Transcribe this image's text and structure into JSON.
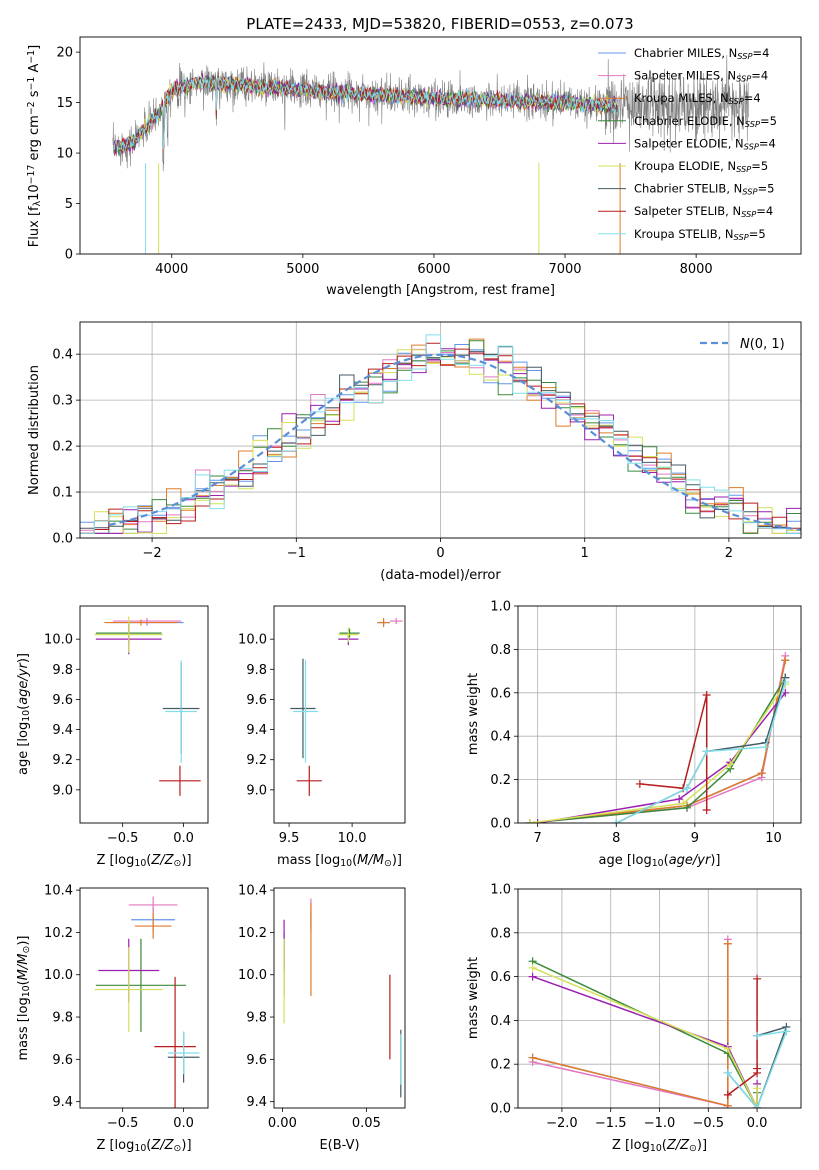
{
  "title": "PLATE=2433, MJD=53820, FIBERID=0553, z=0.073",
  "series": [
    {
      "name": "Chabrier MILES, N_SSP=4",
      "label_main": "Chabrier MILES, N",
      "label_sub": "SSP",
      "label_tail": "=4",
      "color": "#6495ed"
    },
    {
      "name": "Salpeter MILES, N_SSP=4",
      "label_main": "Salpeter MILES, N",
      "label_sub": "SSP",
      "label_tail": "=4",
      "color": "#e377c2"
    },
    {
      "name": "Kroupa MILES, N_SSP=4",
      "label_main": "Kroupa MILES, N",
      "label_sub": "SSP",
      "label_tail": "=4",
      "color": "#e07b28"
    },
    {
      "name": "Chabrier ELODIE, N_SSP=5",
      "label_main": "Chabrier ELODIE, N",
      "label_sub": "SSP",
      "label_tail": "=5",
      "color": "#3a8a3a"
    },
    {
      "name": "Salpeter ELODIE, N_SSP=4",
      "label_main": "Salpeter ELODIE, N",
      "label_sub": "SSP",
      "label_tail": "=4",
      "color": "#9b1fb0"
    },
    {
      "name": "Kroupa ELODIE, N_SSP=5",
      "label_main": "Kroupa ELODIE, N",
      "label_sub": "SSP",
      "label_tail": "=5",
      "color": "#d4e157"
    },
    {
      "name": "Chabrier STELIB, N_SSP=5",
      "label_main": "Chabrier STELIB, N",
      "label_sub": "SSP",
      "label_tail": "=5",
      "color": "#455a64"
    },
    {
      "name": "Salpeter STELIB, N_SSP=4",
      "label_main": "Salpeter STELIB, N",
      "label_sub": "SSP",
      "label_tail": "=4",
      "color": "#b71c1c"
    },
    {
      "name": "Kroupa STELIB, N_SSP=5",
      "label_main": "Kroupa STELIB, N",
      "label_sub": "SSP",
      "label_tail": "=5",
      "color": "#80deea"
    }
  ],
  "chart_data": [
    {
      "id": "spectrum",
      "type": "line",
      "xlabel": "wavelength [Angstrom, rest frame]",
      "ylabel": "Flux [f_λ 10^-17 erg cm^-2 s^-1 A^-1]",
      "xlim": [
        3300,
        8800
      ],
      "ylim": [
        0,
        21.5
      ],
      "xticks": [
        4000,
        5000,
        6000,
        7000,
        8000
      ],
      "yticks": [
        0,
        5,
        10,
        15,
        20
      ],
      "continuum_points": [
        [
          3550,
          10.5
        ],
        [
          3700,
          11
        ],
        [
          3900,
          14
        ],
        [
          4000,
          16.2
        ],
        [
          4200,
          17
        ],
        [
          4500,
          16.8
        ],
        [
          5000,
          16.2
        ],
        [
          5500,
          15.8
        ],
        [
          6000,
          15.4
        ],
        [
          6500,
          15.2
        ],
        [
          7000,
          15
        ],
        [
          7300,
          14.7
        ]
      ],
      "observed_color": "#7f7f7f",
      "grid": false
    },
    {
      "id": "residual_hist",
      "type": "line",
      "xlabel": "(data-model)/error",
      "ylabel": "Normed distribution",
      "xlim": [
        -2.5,
        2.5
      ],
      "ylim": [
        0,
        0.47
      ],
      "xticks": [
        -2,
        -1,
        0,
        1,
        2
      ],
      "yticks": [
        0,
        0.1,
        0.2,
        0.3,
        0.4
      ],
      "legend": "N(0,1)",
      "legend_position": "top-right",
      "gaussian_color": "#5b8fd8",
      "grid": true
    },
    {
      "id": "age_vs_Z",
      "type": "scatter",
      "xlabel": "Z [log10(Z/Z☉)]",
      "ylabel": "age [log10(age/yr)]",
      "xlim": [
        -0.85,
        0.2
      ],
      "ylim": [
        8.78,
        10.22
      ],
      "xticks": [
        -0.5,
        0.0
      ],
      "yticks": [
        9.0,
        9.2,
        9.4,
        9.6,
        9.8,
        10.0
      ],
      "points": [
        {
          "s": 0,
          "x": -0.3,
          "y": 10.11,
          "xe": 0.3,
          "ye": 0.02
        },
        {
          "s": 1,
          "x": -0.3,
          "y": 10.12,
          "xe": 0.28,
          "ye": 0.02
        },
        {
          "s": 2,
          "x": -0.35,
          "y": 10.11,
          "xe": 0.3,
          "ye": 0.02
        },
        {
          "s": 3,
          "x": -0.45,
          "y": 10.04,
          "xe": 0.27,
          "ye": 0.08
        },
        {
          "s": 4,
          "x": -0.45,
          "y": 10.0,
          "xe": 0.27,
          "ye": 0.1
        },
        {
          "s": 5,
          "x": -0.45,
          "y": 10.03,
          "xe": 0.28,
          "ye": 0.12
        },
        {
          "s": 6,
          "x": -0.02,
          "y": 9.54,
          "xe": 0.15,
          "ye": 0.3
        },
        {
          "s": 7,
          "x": -0.03,
          "y": 9.06,
          "xe": 0.17,
          "ye": 0.1
        },
        {
          "s": 8,
          "x": -0.02,
          "y": 9.52,
          "xe": 0.13,
          "ye": 0.34
        }
      ]
    },
    {
      "id": "age_vs_mass",
      "type": "scatter",
      "xlabel": "mass [log10(M/M☉)]",
      "ylabel": "",
      "xlim": [
        9.38,
        10.42
      ],
      "ylim": [
        8.78,
        10.22
      ],
      "xticks": [
        9.5,
        10.0
      ],
      "yticks": [
        9.0,
        9.2,
        9.4,
        9.6,
        9.8,
        10.0
      ],
      "points": [
        {
          "s": 0,
          "x": 10.25,
          "y": 10.11,
          "xe": 0.05,
          "ye": 0.02
        },
        {
          "s": 1,
          "x": 10.35,
          "y": 10.12,
          "xe": 0.05,
          "ye": 0.02
        },
        {
          "s": 2,
          "x": 10.25,
          "y": 10.11,
          "xe": 0.05,
          "ye": 0.03
        },
        {
          "s": 3,
          "x": 9.98,
          "y": 10.04,
          "xe": 0.08,
          "ye": 0.03
        },
        {
          "s": 4,
          "x": 9.97,
          "y": 10.0,
          "xe": 0.08,
          "ye": 0.04
        },
        {
          "s": 5,
          "x": 9.97,
          "y": 10.03,
          "xe": 0.08,
          "ye": 0.05
        },
        {
          "s": 6,
          "x": 9.61,
          "y": 9.54,
          "xe": 0.1,
          "ye": 0.33
        },
        {
          "s": 7,
          "x": 9.66,
          "y": 9.06,
          "xe": 0.1,
          "ye": 0.1
        },
        {
          "s": 8,
          "x": 9.63,
          "y": 9.52,
          "xe": 0.1,
          "ye": 0.34
        }
      ]
    },
    {
      "id": "massweight_vs_age",
      "type": "line",
      "xlabel": "age [log10(age/yr)]",
      "ylabel": "mass weight",
      "xlim": [
        6.75,
        10.35
      ],
      "ylim": [
        0,
        1.0
      ],
      "xticks": [
        7,
        8,
        9,
        10
      ],
      "yticks": [
        0.0,
        0.2,
        0.4,
        0.6,
        0.8,
        1.0
      ],
      "grid": true,
      "lines": [
        {
          "s": 0,
          "pts": [
            [
              6.9,
              0.0
            ],
            [
              8.9,
              0.08
            ],
            [
              9.85,
              0.23
            ],
            [
              10.15,
              0.75
            ]
          ]
        },
        {
          "s": 1,
          "pts": [
            [
              6.9,
              0.0
            ],
            [
              8.9,
              0.07
            ],
            [
              9.85,
              0.21
            ],
            [
              10.15,
              0.77
            ]
          ]
        },
        {
          "s": 2,
          "pts": [
            [
              6.9,
              0.0
            ],
            [
              8.9,
              0.08
            ],
            [
              9.85,
              0.23
            ],
            [
              10.15,
              0.75
            ]
          ]
        },
        {
          "s": 3,
          "pts": [
            [
              6.9,
              0.0
            ],
            [
              8.9,
              0.07
            ],
            [
              9.45,
              0.25
            ],
            [
              10.15,
              0.67
            ]
          ]
        },
        {
          "s": 4,
          "pts": [
            [
              7.0,
              0.0
            ],
            [
              8.8,
              0.11
            ],
            [
              9.45,
              0.28
            ],
            [
              10.15,
              0.6
            ]
          ]
        },
        {
          "s": 5,
          "pts": [
            [
              6.9,
              0.0
            ],
            [
              8.85,
              0.09
            ],
            [
              9.45,
              0.27
            ],
            [
              10.15,
              0.64
            ]
          ]
        },
        {
          "s": 6,
          "pts": [
            [
              8.0,
              0.0
            ],
            [
              8.9,
              0.16
            ],
            [
              9.15,
              0.33
            ],
            [
              9.9,
              0.37
            ],
            [
              10.15,
              0.67
            ]
          ]
        },
        {
          "s": 7,
          "pts": [
            [
              8.3,
              0.18
            ],
            [
              8.85,
              0.16
            ],
            [
              9.15,
              0.59
            ],
            [
              9.15,
              0.06
            ]
          ]
        },
        {
          "s": 8,
          "pts": [
            [
              8.0,
              0.0
            ],
            [
              8.9,
              0.16
            ],
            [
              9.15,
              0.33
            ],
            [
              9.9,
              0.35
            ],
            [
              10.15,
              0.65
            ]
          ]
        }
      ]
    },
    {
      "id": "mass_vs_Z",
      "type": "scatter",
      "xlabel": "Z [log10(Z/Z☉)]",
      "ylabel": "mass [log10(M/M☉)]",
      "xlim": [
        -0.85,
        0.2
      ],
      "ylim": [
        9.37,
        10.41
      ],
      "xticks": [
        -0.5,
        0.0
      ],
      "yticks": [
        9.4,
        9.6,
        9.8,
        10.0,
        10.2,
        10.4
      ],
      "points": [
        {
          "s": 0,
          "x": -0.25,
          "y": 10.26,
          "xe": 0.18,
          "ye": 0.06
        },
        {
          "s": 1,
          "x": -0.25,
          "y": 10.33,
          "xe": 0.2,
          "ye": 0.04
        },
        {
          "s": 2,
          "x": -0.25,
          "y": 10.23,
          "xe": 0.15,
          "ye": 0.06
        },
        {
          "s": 3,
          "x": -0.35,
          "y": 9.95,
          "xe": 0.37,
          "ye": 0.22
        },
        {
          "s": 4,
          "x": -0.45,
          "y": 10.02,
          "xe": 0.25,
          "ye": 0.15
        },
        {
          "s": 5,
          "x": -0.45,
          "y": 9.93,
          "xe": 0.28,
          "ye": 0.2
        },
        {
          "s": 6,
          "x": 0.0,
          "y": 9.61,
          "xe": 0.13,
          "ye": 0.12
        },
        {
          "s": 7,
          "x": -0.07,
          "y": 9.66,
          "xe": 0.17,
          "ye": 0.33
        },
        {
          "s": 8,
          "x": 0.0,
          "y": 9.63,
          "xe": 0.13,
          "ye": 0.1
        }
      ]
    },
    {
      "id": "mass_vs_EBV",
      "type": "scatter",
      "xlabel": "E(B-V)",
      "ylabel": "",
      "xlim": [
        -0.005,
        0.073
      ],
      "ylim": [
        9.37,
        10.41
      ],
      "xticks": [
        0.0,
        0.05
      ],
      "yticks": [
        9.4,
        9.6,
        9.8,
        10.0,
        10.2,
        10.4
      ],
      "points": [
        {
          "s": 0,
          "x": 0.017,
          "y": 10.26,
          "xe": 0,
          "ye": 0.04
        },
        {
          "s": 1,
          "x": 0.017,
          "y": 10.28,
          "xe": 0,
          "ye": 0.08
        },
        {
          "s": 2,
          "x": 0.017,
          "y": 10.12,
          "xe": 0,
          "ye": 0.22
        },
        {
          "s": 3,
          "x": 0.001,
          "y": 10.05,
          "xe": 0,
          "ye": 0.15
        },
        {
          "s": 4,
          "x": 0.001,
          "y": 10.14,
          "xe": 0,
          "ye": 0.12
        },
        {
          "s": 5,
          "x": 0.001,
          "y": 9.97,
          "xe": 0,
          "ye": 0.2
        },
        {
          "s": 6,
          "x": 0.0705,
          "y": 9.58,
          "xe": 0,
          "ye": 0.16
        },
        {
          "s": 7,
          "x": 0.064,
          "y": 9.8,
          "xe": 0,
          "ye": 0.2
        },
        {
          "s": 8,
          "x": 0.0705,
          "y": 9.6,
          "xe": 0,
          "ye": 0.12
        }
      ]
    },
    {
      "id": "massweight_vs_Z",
      "type": "line",
      "xlabel": "Z [log10(Z/Z☉)]",
      "ylabel": "mass weight",
      "xlim": [
        -2.45,
        0.45
      ],
      "ylim": [
        0,
        1.0
      ],
      "xticks": [
        -2.0,
        -1.5,
        -1.0,
        -0.5,
        0.0
      ],
      "yticks": [
        0.0,
        0.2,
        0.4,
        0.6,
        0.8,
        1.0
      ],
      "grid": true,
      "lines": [
        {
          "s": 0,
          "pts": [
            [
              -2.3,
              0.23
            ],
            [
              -0.3,
              0.01
            ],
            [
              -0.3,
              0.75
            ]
          ]
        },
        {
          "s": 1,
          "pts": [
            [
              -2.3,
              0.21
            ],
            [
              -0.3,
              0.01
            ],
            [
              -0.3,
              0.77
            ]
          ]
        },
        {
          "s": 2,
          "pts": [
            [
              -2.3,
              0.23
            ],
            [
              -0.3,
              0.01
            ],
            [
              -0.3,
              0.75
            ]
          ]
        },
        {
          "s": 3,
          "pts": [
            [
              -2.3,
              0.67
            ],
            [
              -0.3,
              0.25
            ],
            [
              0.0,
              0.0
            ],
            [
              0.0,
              0.07
            ]
          ]
        },
        {
          "s": 4,
          "pts": [
            [
              -2.3,
              0.6
            ],
            [
              -0.3,
              0.28
            ],
            [
              0.0,
              0.0
            ],
            [
              0.0,
              0.11
            ]
          ]
        },
        {
          "s": 5,
          "pts": [
            [
              -2.3,
              0.64
            ],
            [
              -0.3,
              0.27
            ],
            [
              0.0,
              0.0
            ],
            [
              0.0,
              0.09
            ]
          ]
        },
        {
          "s": 6,
          "pts": [
            [
              -0.3,
              0.16
            ],
            [
              0.0,
              0.0
            ],
            [
              0.3,
              0.37
            ],
            [
              0.0,
              0.33
            ]
          ]
        },
        {
          "s": 7,
          "pts": [
            [
              -0.3,
              0.06
            ],
            [
              0.0,
              0.16
            ],
            [
              0.0,
              0.59
            ],
            [
              0.0,
              0.18
            ]
          ]
        },
        {
          "s": 8,
          "pts": [
            [
              -0.3,
              0.16
            ],
            [
              0.0,
              0.0
            ],
            [
              0.3,
              0.35
            ],
            [
              0.0,
              0.33
            ]
          ]
        }
      ]
    }
  ]
}
